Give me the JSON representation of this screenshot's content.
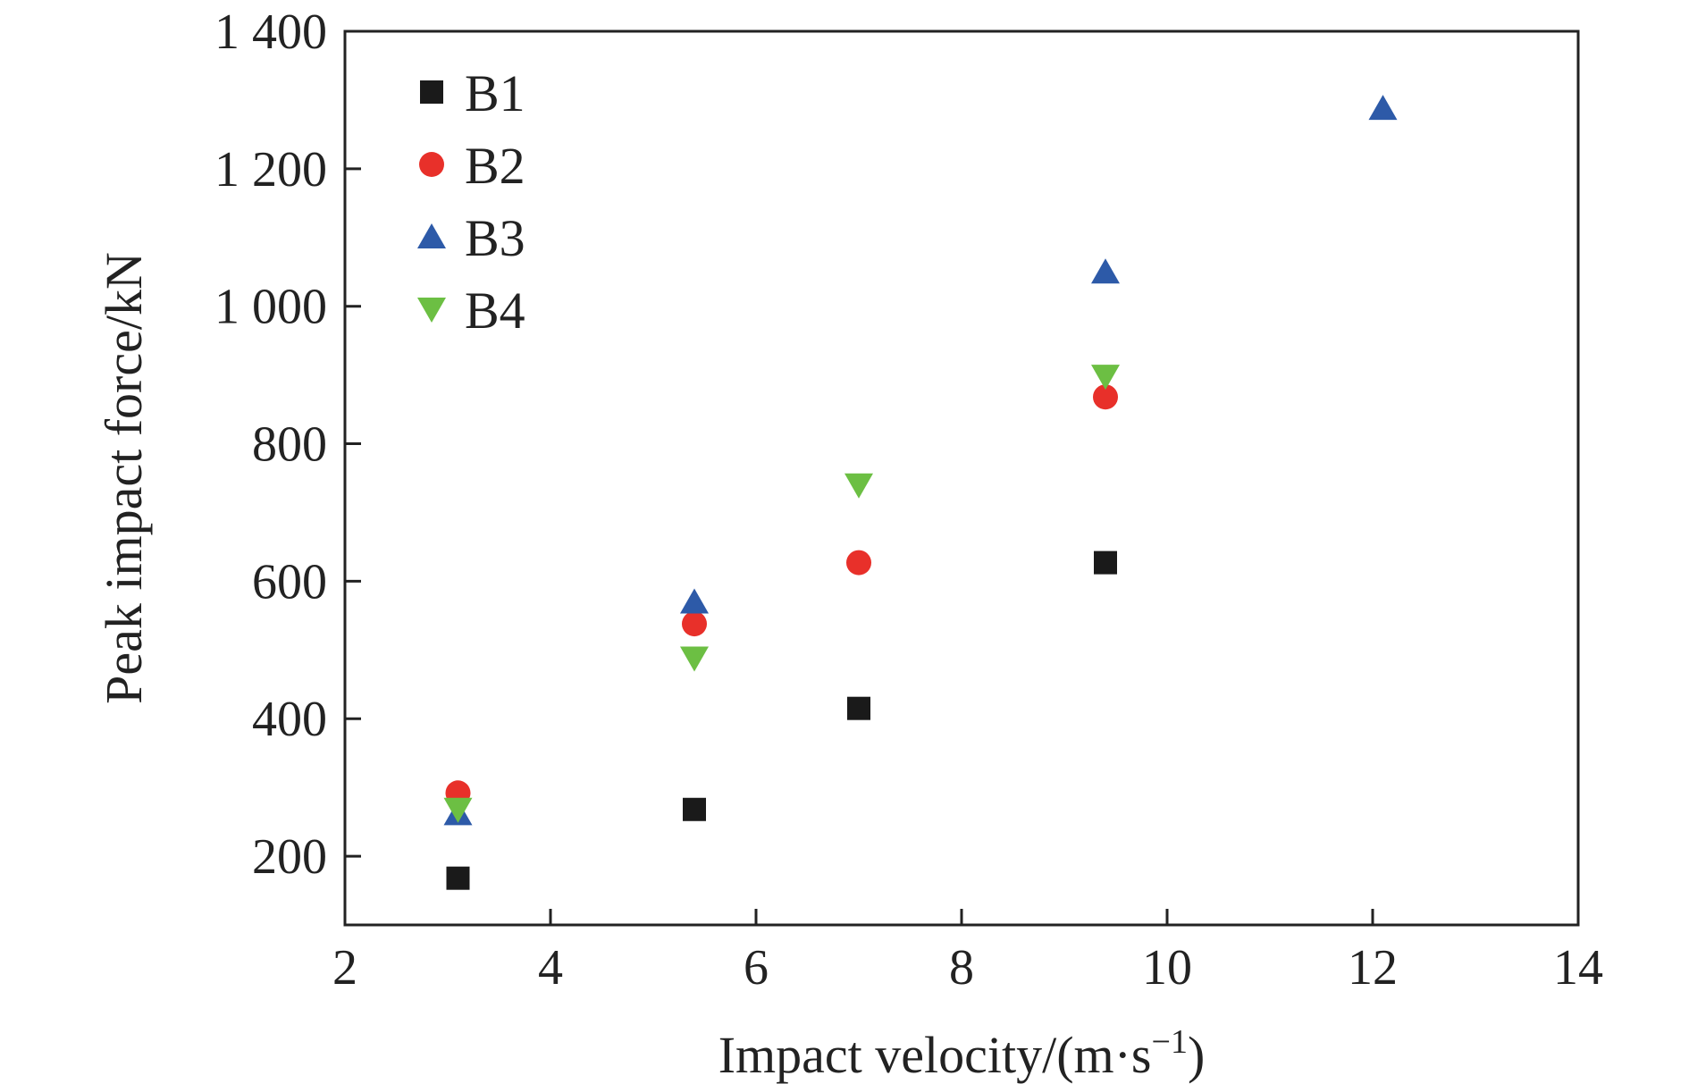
{
  "chart_data": {
    "type": "scatter",
    "xlabel_main": "Impact velocity/(m·s",
    "xlabel_sup": "−1",
    "xlabel_end": ")",
    "ylabel": "Peak impact force/kN",
    "xlim": [
      2,
      14
    ],
    "ylim": [
      100,
      1400
    ],
    "x_ticks": [
      2,
      4,
      6,
      8,
      10,
      12,
      14
    ],
    "x_tick_labels": [
      "2",
      "4",
      "6",
      "8",
      "10",
      "12",
      "14"
    ],
    "y_ticks": [
      200,
      400,
      600,
      800,
      1000,
      1200,
      1400
    ],
    "y_tick_labels": [
      "200",
      "400",
      "600",
      "800",
      "1 000",
      "1 200",
      "1 400"
    ],
    "grid": false,
    "legend_position": "top-left",
    "series": [
      {
        "name": "B1",
        "marker": "square",
        "color": "#1a1a1a",
        "x": [
          3.1,
          5.4,
          7.0,
          9.4
        ],
        "y": [
          168,
          268,
          415,
          627
        ]
      },
      {
        "name": "B2",
        "marker": "circle",
        "color": "#e8302a",
        "x": [
          3.1,
          5.4,
          7.0,
          9.4
        ],
        "y": [
          292,
          538,
          627,
          868
        ]
      },
      {
        "name": "B3",
        "marker": "triangle-up",
        "color": "#2d5aa8",
        "x": [
          3.1,
          5.4,
          9.4,
          12.1
        ],
        "y": [
          262,
          570,
          1050,
          1288
        ]
      },
      {
        "name": "B4",
        "marker": "triangle-down",
        "color": "#6cbf43",
        "x": [
          3.1,
          5.4,
          7.0,
          9.4
        ],
        "y": [
          268,
          488,
          740,
          898
        ]
      }
    ]
  }
}
